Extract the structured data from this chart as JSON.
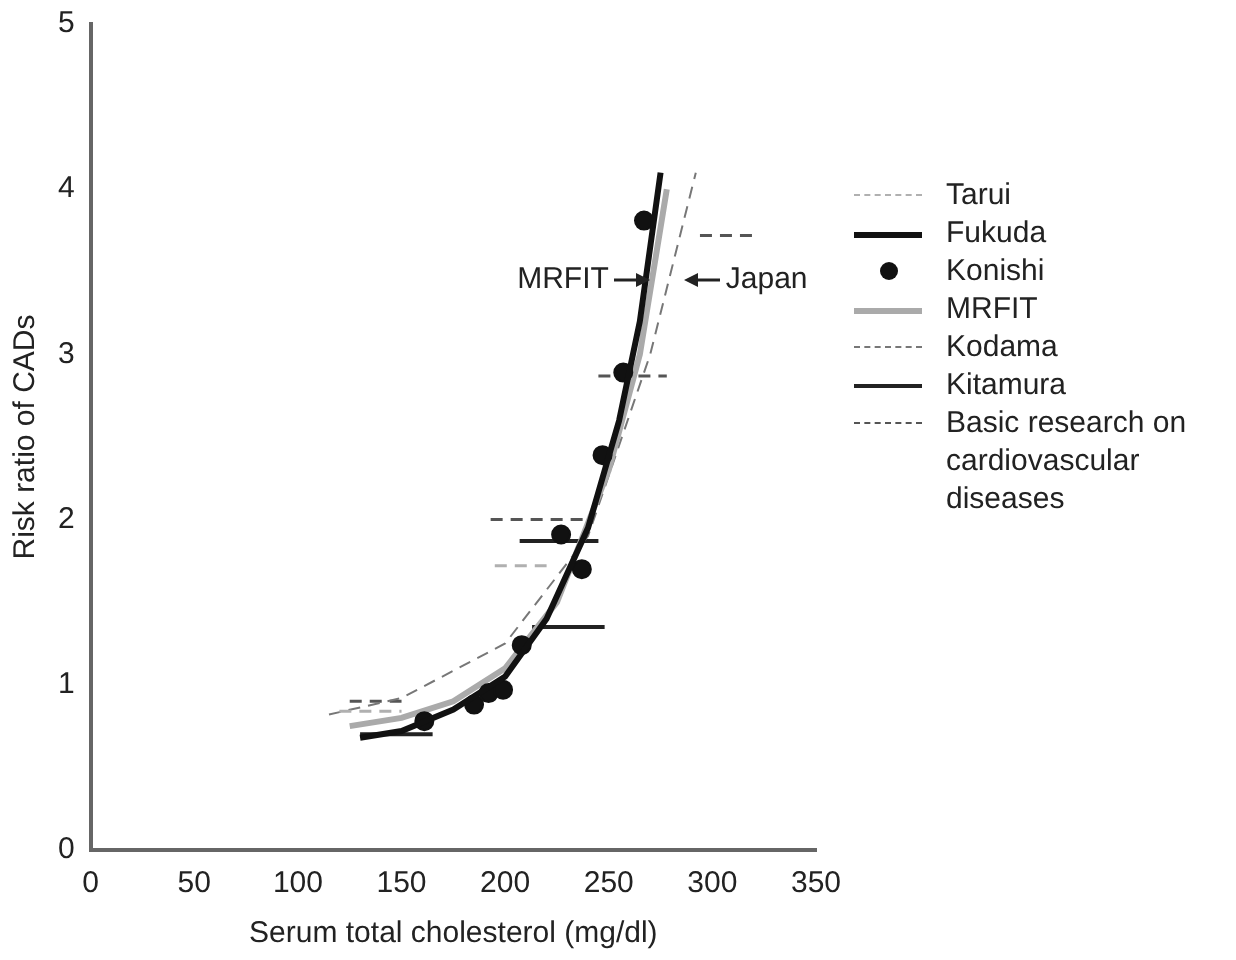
{
  "chart_data": {
    "type": "line",
    "xlabel": "Serum total cholesterol (mg/dl)",
    "ylabel": "Risk ratio of CADs",
    "xlim": [
      0,
      350
    ],
    "xticks": [
      0,
      50,
      100,
      150,
      200,
      250,
      300,
      350
    ],
    "ylim": [
      0,
      5
    ],
    "yticks": [
      0,
      1,
      2,
      3,
      4,
      5
    ],
    "grid": false,
    "legend": "right",
    "annotations": [
      "MRFIT",
      "Japan"
    ],
    "series": [
      {
        "name": "Tarui",
        "color": "#b0b0b0",
        "line_style": "dashed",
        "x": [
          195,
          220,
          null,
          120,
          150
        ],
        "values": [
          1.72,
          1.72,
          null,
          0.84,
          0.84
        ]
      },
      {
        "name": "Fukuda",
        "color": "#111111",
        "line_style": "solid",
        "x": [
          130,
          150,
          175,
          200,
          220,
          240,
          255,
          265,
          275
        ],
        "values": [
          0.68,
          0.72,
          0.85,
          1.05,
          1.4,
          1.95,
          2.6,
          3.2,
          4.1
        ]
      },
      {
        "name": "Konishi",
        "type": "scatter",
        "color": "#111111",
        "marker": "circle",
        "x": [
          161,
          185,
          192,
          199,
          208,
          227,
          237,
          247,
          257,
          267
        ],
        "values": [
          0.78,
          0.88,
          0.95,
          0.97,
          1.24,
          1.91,
          1.7,
          2.39,
          2.89,
          3.81
        ]
      },
      {
        "name": "MRFIT",
        "color": "#aaaaaa",
        "line_style": "solid",
        "x": [
          125,
          150,
          175,
          200,
          225,
          250,
          265,
          278
        ],
        "values": [
          0.75,
          0.8,
          0.9,
          1.1,
          1.5,
          2.3,
          3.0,
          4.0
        ]
      },
      {
        "name": "Kodama",
        "color": "#777777",
        "line_style": "dashed",
        "x": [
          115,
          150,
          200,
          240,
          270,
          292
        ],
        "values": [
          0.82,
          0.92,
          1.25,
          1.9,
          3.0,
          4.1
        ]
      },
      {
        "name": "Kitamura",
        "color": "#222222",
        "line_style": "solid",
        "x": [
          130,
          165,
          null,
          207,
          245,
          null,
          213,
          248
        ],
        "values": [
          0.7,
          0.7,
          null,
          1.87,
          1.87,
          null,
          1.35,
          1.35
        ]
      },
      {
        "name": "Basic research on cardiovascular diseases",
        "color": "#555555",
        "line_style": "dashed",
        "x": [
          193,
          241,
          null,
          294,
          320,
          null,
          245,
          278,
          null,
          125,
          150
        ],
        "values": [
          2.0,
          2.0,
          null,
          3.72,
          3.72,
          null,
          2.87,
          2.87,
          null,
          0.9,
          0.9
        ]
      }
    ]
  }
}
